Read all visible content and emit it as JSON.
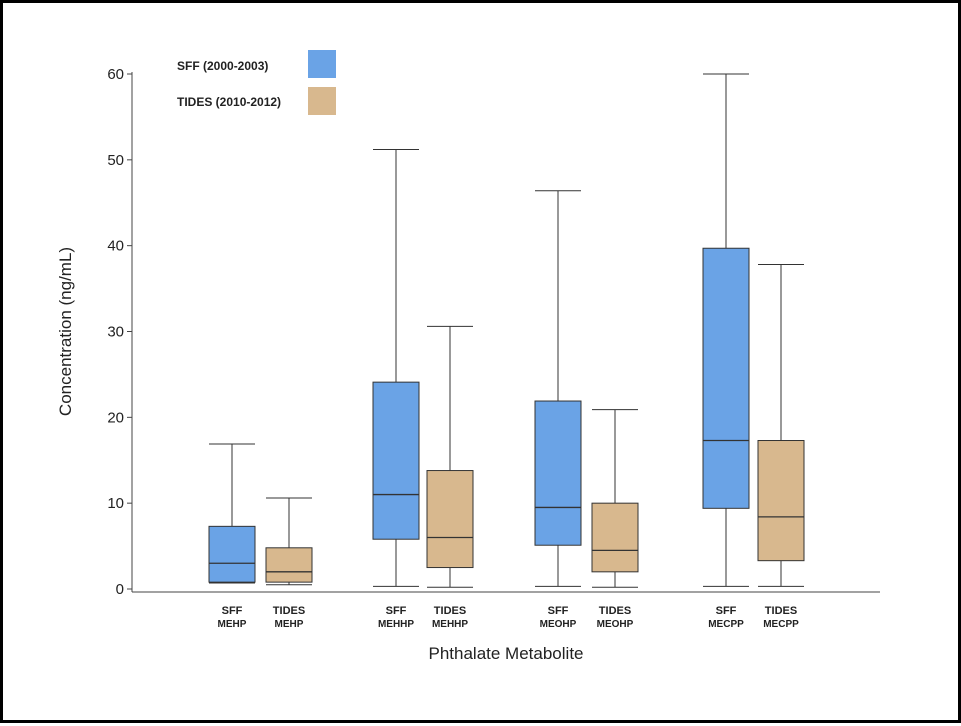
{
  "chart_data": {
    "type": "box",
    "xlabel": "Phthalate Metabolite",
    "ylabel": "Concentration (ng/mL)",
    "ylim": [
      0,
      60
    ],
    "yticks": [
      0,
      10,
      20,
      30,
      40,
      50,
      60
    ],
    "legend_position": "top-left",
    "series": [
      {
        "name": "SFF (2000-2003)",
        "color": "#6aa3e6"
      },
      {
        "name": "TIDES (2010-2012)",
        "color": "#d8b88e"
      }
    ],
    "boxes": [
      {
        "series": 0,
        "line1": "SFF",
        "line2": "MEHP",
        "min": 0.7,
        "q1": 0.8,
        "median": 3.0,
        "q3": 7.3,
        "max": 16.9
      },
      {
        "series": 1,
        "line1": "TIDES",
        "line2": "MEHP",
        "min": 0.5,
        "q1": 0.8,
        "median": 2.0,
        "q3": 4.8,
        "max": 10.6
      },
      {
        "series": 0,
        "line1": "SFF",
        "line2": "MEHHP",
        "min": 0.3,
        "q1": 5.8,
        "median": 11.0,
        "q3": 24.1,
        "max": 51.2
      },
      {
        "series": 1,
        "line1": "TIDES",
        "line2": "MEHHP",
        "min": 0.2,
        "q1": 2.5,
        "median": 6.0,
        "q3": 13.8,
        "max": 30.6
      },
      {
        "series": 0,
        "line1": "SFF",
        "line2": "MEOHP",
        "min": 0.3,
        "q1": 5.1,
        "median": 9.5,
        "q3": 21.9,
        "max": 46.4
      },
      {
        "series": 1,
        "line1": "TIDES",
        "line2": "MEOHP",
        "min": 0.2,
        "q1": 2.0,
        "median": 4.5,
        "q3": 10.0,
        "max": 20.9
      },
      {
        "series": 0,
        "line1": "SFF",
        "line2": "MECPP",
        "min": 0.3,
        "q1": 9.4,
        "median": 17.3,
        "q3": 39.7,
        "max": 60.0
      },
      {
        "series": 1,
        "line1": "TIDES",
        "line2": "MECPP",
        "min": 0.3,
        "q1": 3.3,
        "median": 8.4,
        "q3": 17.3,
        "max": 37.8
      }
    ]
  }
}
